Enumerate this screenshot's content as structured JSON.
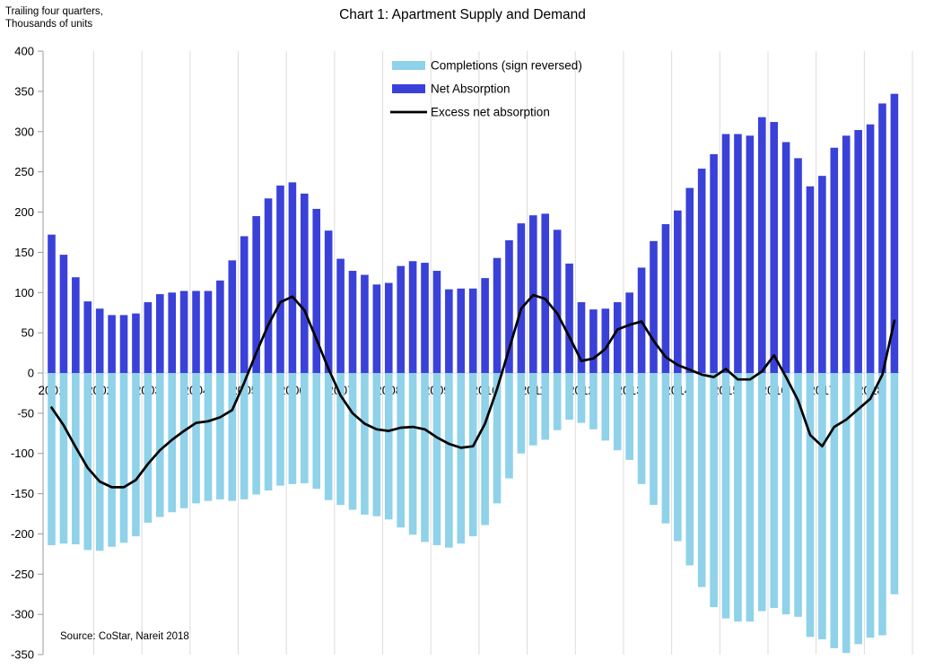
{
  "title": "Chart 1: Apartment Supply and Demand",
  "axis_note": {
    "line1": "Trailing four quarters,",
    "line2": "Thousands of units"
  },
  "source": "Source: CoStar, Nareit 2018",
  "colors": {
    "completions": "#8FD2E9",
    "net_absorption": "#3A41D8",
    "excess_line": "#000000",
    "gridline": "#DCDCDC",
    "axis": "#9A9A9A",
    "text": "#000000"
  },
  "legend": [
    {
      "label": "Completions (sign reversed)",
      "swatch": "bar",
      "color": "#8FD2E9"
    },
    {
      "label": "Net Absorption",
      "swatch": "bar",
      "color": "#3A41D8"
    },
    {
      "label": "Excess net absorption",
      "swatch": "line",
      "color": "#000000"
    }
  ],
  "chart_data": {
    "type": "bar",
    "subtype": "bar+line combo, quarterly",
    "title": "Chart 1: Apartment Supply and Demand",
    "ylabel": "Thousands of units (trailing four quarters)",
    "ylim": [
      -350,
      400
    ],
    "ytick_step": 50,
    "grid": "vertical year separators only",
    "legend_position": "top-center",
    "x_year_labels": [
      "2001",
      "2002",
      "2003",
      "2004",
      "2005",
      "2006",
      "2007",
      "2008",
      "2009",
      "2010",
      "2011",
      "2012",
      "2013",
      "2014",
      "2015",
      "2016",
      "2017",
      "2018"
    ],
    "quarters_per_year": 4,
    "n_points": 71,
    "last_point": "2018Q3",
    "series": [
      {
        "name": "Completions (sign reversed)",
        "type": "bar",
        "values": [
          -214,
          -212,
          -213,
          -220,
          -221,
          -216,
          -211,
          -203,
          -186,
          -179,
          -173,
          -168,
          -162,
          -159,
          -157,
          -159,
          -157,
          -151,
          -146,
          -140,
          -138,
          -137,
          -144,
          -158,
          -164,
          -170,
          -176,
          -178,
          -182,
          -192,
          -201,
          -210,
          -214,
          -217,
          -212,
          -203,
          -189,
          -162,
          -131,
          -100,
          -90,
          -83,
          -71,
          -58,
          -62,
          -70,
          -84,
          -96,
          -108,
          -138,
          -164,
          -187,
          -209,
          -239,
          -266,
          -291,
          -305,
          -309,
          -309,
          -296,
          -292,
          -300,
          -303,
          -328,
          -331,
          -342,
          -348,
          -337,
          -329,
          -326,
          -275
        ]
      },
      {
        "name": "Net Absorption",
        "type": "bar",
        "values": [
          172,
          147,
          119,
          89,
          80,
          72,
          72,
          74,
          88,
          98,
          100,
          102,
          102,
          102,
          115,
          140,
          170,
          195,
          217,
          233,
          237,
          223,
          204,
          177,
          142,
          127,
          122,
          110,
          112,
          133,
          139,
          137,
          127,
          104,
          105,
          105,
          118,
          143,
          165,
          186,
          196,
          198,
          178,
          136,
          88,
          79,
          80,
          88,
          100,
          131,
          164,
          185,
          202,
          230,
          254,
          272,
          297,
          297,
          295,
          318,
          312,
          287,
          267,
          232,
          245,
          280,
          295,
          302,
          309,
          335,
          347
        ]
      },
      {
        "name": "Excess net absorption",
        "type": "line",
        "values": [
          -43,
          -65,
          -92,
          -118,
          -135,
          -142,
          -142,
          -133,
          -113,
          -96,
          -83,
          -72,
          -62,
          -60,
          -55,
          -46,
          -12,
          25,
          60,
          88,
          95,
          78,
          42,
          5,
          -28,
          -50,
          -63,
          -70,
          -72,
          -68,
          -67,
          -70,
          -80,
          -88,
          -93,
          -91,
          -63,
          -20,
          30,
          80,
          97,
          92,
          74,
          45,
          15,
          18,
          30,
          54,
          60,
          64,
          40,
          20,
          10,
          4,
          -2,
          -5,
          5,
          -8,
          -8,
          2,
          22,
          -5,
          -34,
          -77,
          -91,
          -67,
          -58,
          -45,
          -32,
          -2,
          65
        ]
      }
    ]
  }
}
